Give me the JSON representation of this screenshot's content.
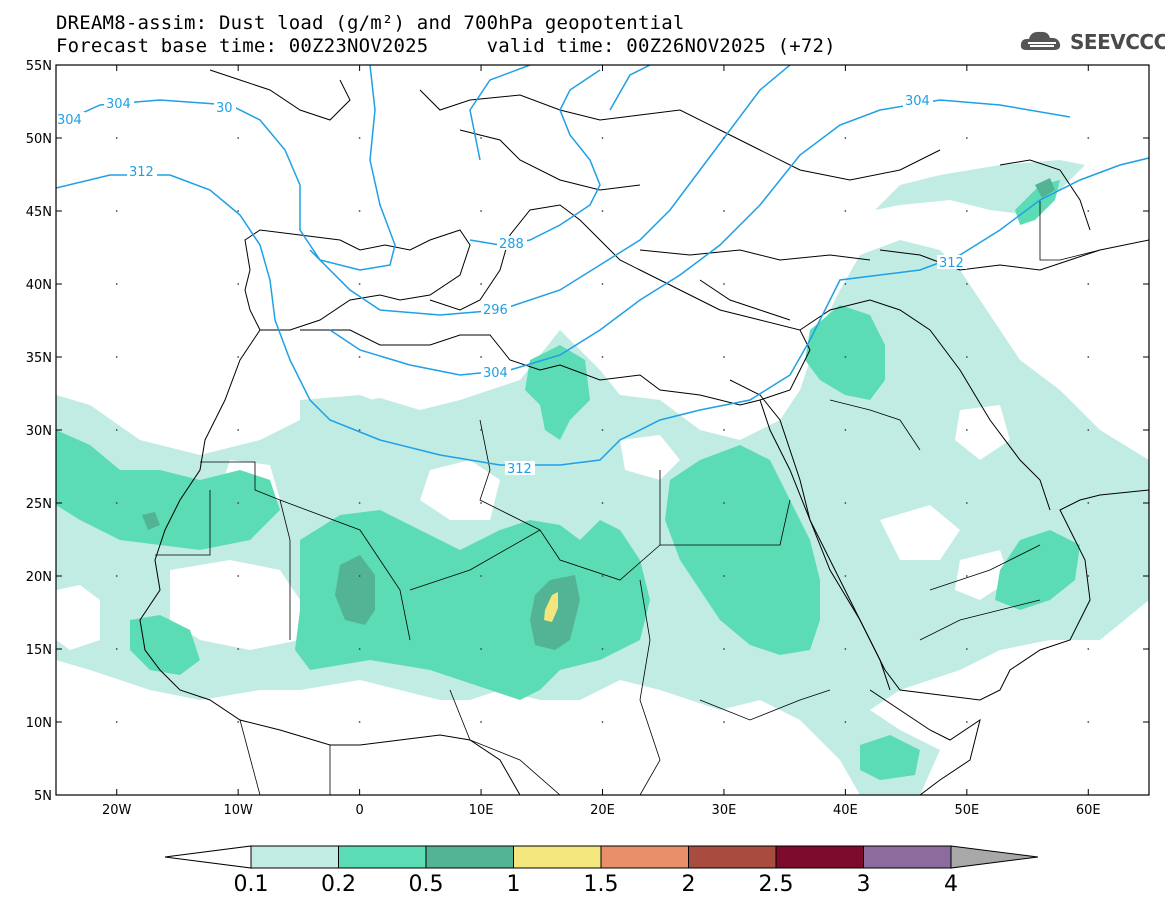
{
  "title": {
    "line1": "DREAM8-assim: Dust load (g/m²) and 700hPa geopotential",
    "line2": "Forecast base time: 00Z23NOV2025     valid time: 00Z26NOV2025 (+72)"
  },
  "logo": {
    "text": "SEEVCCC",
    "icon": "cloud-logo-icon"
  },
  "map": {
    "lat_labels": [
      "55N",
      "50N",
      "45N",
      "40N",
      "35N",
      "30N",
      "25N",
      "20N",
      "15N",
      "10N",
      "5N"
    ],
    "lon_labels": [
      "20W",
      "10W",
      "0",
      "10E",
      "20E",
      "30E",
      "40E",
      "50E",
      "60E"
    ],
    "lat_range": [
      5,
      55
    ],
    "lon_range": [
      -25,
      65
    ],
    "contour_labels": [
      "304",
      "304",
      "30",
      "312",
      "288",
      "296",
      "304",
      "312",
      "304",
      "312"
    ]
  },
  "colorbar": {
    "levels": [
      "0.1",
      "0.2",
      "0.5",
      "1",
      "1.5",
      "2",
      "2.5",
      "3",
      "4"
    ],
    "colors": [
      "#c0ece4",
      "#5cdcb4",
      "#52b494",
      "#f2e67c",
      "#e8906a",
      "#a84c40",
      "#7c0b2c",
      "#8c6c9c",
      "#a8a8a8"
    ]
  },
  "colors": {
    "dust_light": "#c0ece4",
    "dust_mid": "#5cdcb4",
    "dust_dark": "#52b494",
    "dust_yellow": "#f2e67c",
    "contour": "#1fa0e6"
  }
}
